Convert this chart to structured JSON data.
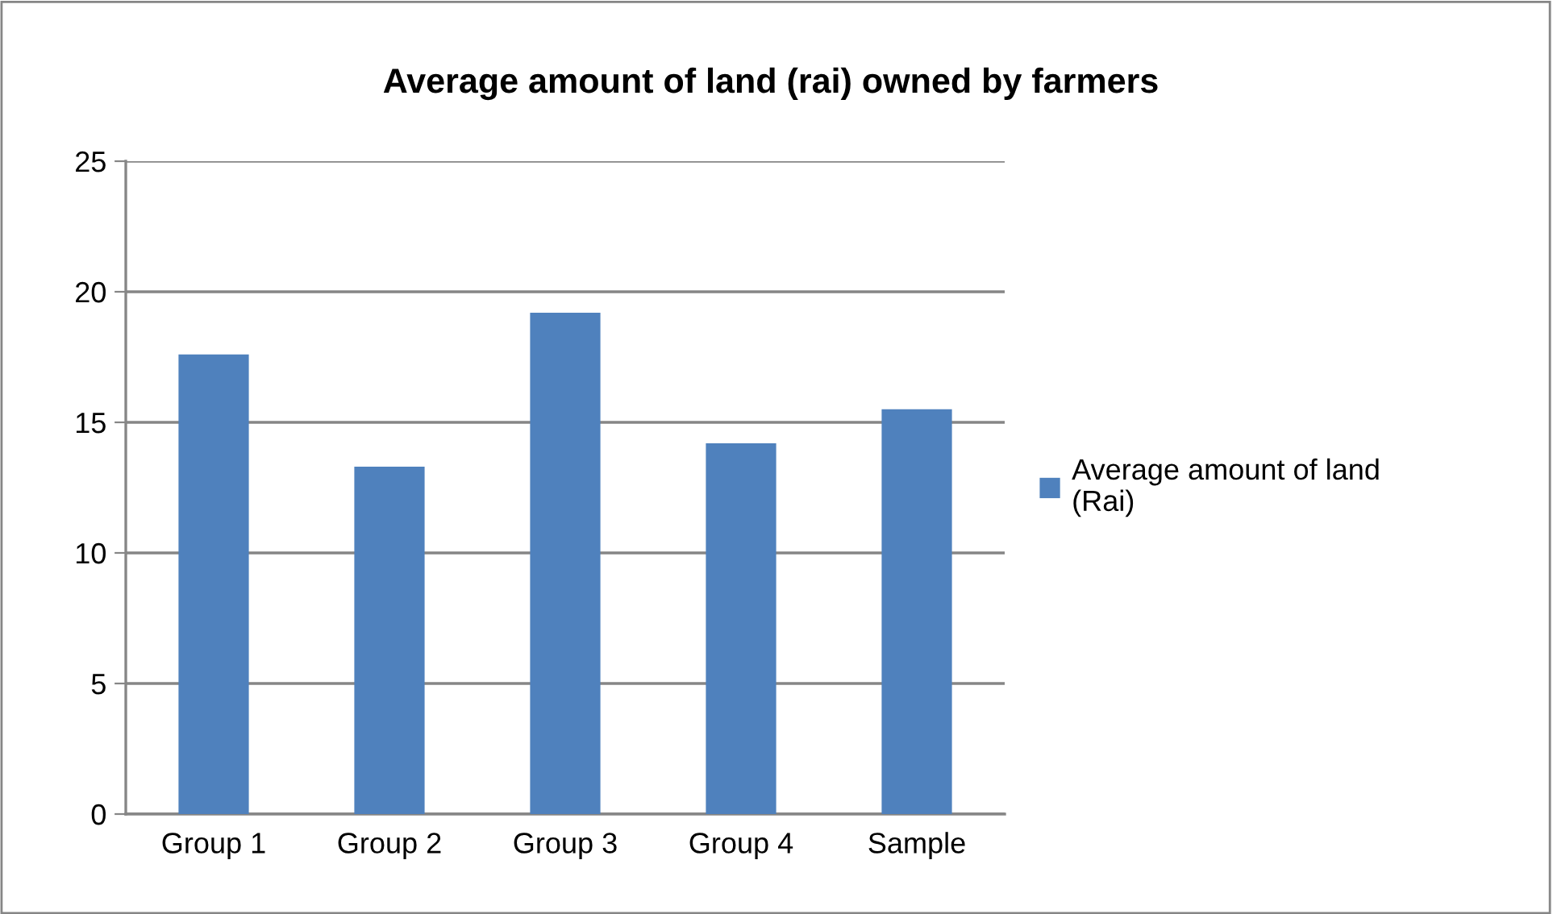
{
  "chart_data": {
    "type": "bar",
    "title": "Average amount of land (rai) owned by farmers",
    "categories": [
      "Group 1",
      "Group 2",
      "Group 3",
      "Group 4",
      "Sample"
    ],
    "series": [
      {
        "name": "Average amount of land (Rai)",
        "color": "#4f81bd",
        "values": [
          17.6,
          13.3,
          19.2,
          14.2,
          15.5
        ]
      }
    ],
    "ylim": [
      0,
      25
    ],
    "yticks": [
      0,
      5,
      10,
      15,
      20,
      25
    ],
    "grid": "y",
    "legend": "right"
  }
}
